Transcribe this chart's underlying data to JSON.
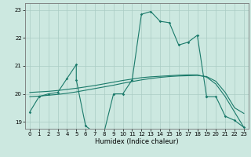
{
  "xlabel": "Humidex (Indice chaleur)",
  "xlim": [
    -0.5,
    23.5
  ],
  "ylim": [
    18.75,
    23.25
  ],
  "yticks": [
    19,
    20,
    21,
    22,
    23
  ],
  "xticks": [
    0,
    1,
    2,
    3,
    4,
    5,
    6,
    7,
    8,
    9,
    10,
    11,
    12,
    13,
    14,
    15,
    16,
    17,
    18,
    19,
    20,
    21,
    22,
    23
  ],
  "background_color": "#cce8e0",
  "grid_color": "#aaccC4",
  "line_color": "#1a7a6a",
  "jagged_x": [
    0,
    1,
    2,
    3,
    4,
    5,
    5,
    6,
    7,
    8,
    9,
    10,
    11,
    12,
    13,
    14,
    15,
    16,
    17,
    18,
    19
  ],
  "jagged_y": [
    19.35,
    19.9,
    20.0,
    20.05,
    20.55,
    21.05,
    20.5,
    18.85,
    18.6,
    18.65,
    20.0,
    20.0,
    20.5,
    22.85,
    22.95,
    22.6,
    22.55,
    21.75,
    21.85,
    22.1,
    19.9
  ],
  "tail_x": [
    19,
    20,
    21,
    22,
    23
  ],
  "tail_y": [
    19.9,
    19.9,
    19.2,
    19.05,
    18.8
  ],
  "trend1_x": [
    0,
    1,
    2,
    3,
    4,
    5,
    6,
    7,
    8,
    9,
    10,
    11,
    12,
    13,
    14,
    15,
    16,
    17,
    18,
    19,
    20,
    21,
    22,
    23
  ],
  "trend1_y": [
    20.05,
    20.07,
    20.09,
    20.12,
    20.16,
    20.2,
    20.25,
    20.3,
    20.36,
    20.42,
    20.48,
    20.53,
    20.58,
    20.61,
    20.63,
    20.65,
    20.67,
    20.68,
    20.68,
    20.6,
    20.35,
    19.9,
    19.35,
    18.8
  ],
  "trend2_x": [
    0,
    1,
    2,
    3,
    4,
    5,
    6,
    7,
    8,
    9,
    10,
    11,
    12,
    13,
    14,
    15,
    16,
    17,
    18,
    19,
    20,
    21,
    22,
    23
  ],
  "trend2_y": [
    19.9,
    19.92,
    19.95,
    19.98,
    20.02,
    20.07,
    20.13,
    20.19,
    20.25,
    20.31,
    20.38,
    20.44,
    20.5,
    20.55,
    20.59,
    20.62,
    20.64,
    20.65,
    20.66,
    20.62,
    20.45,
    20.05,
    19.5,
    19.3
  ]
}
